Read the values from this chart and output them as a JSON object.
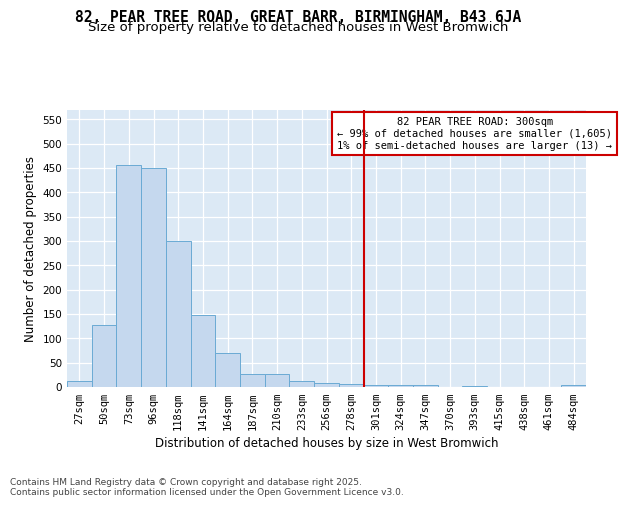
{
  "title_line1": "82, PEAR TREE ROAD, GREAT BARR, BIRMINGHAM, B43 6JA",
  "title_line2": "Size of property relative to detached houses in West Bromwich",
  "xlabel": "Distribution of detached houses by size in West Bromwich",
  "ylabel": "Number of detached properties",
  "categories": [
    "27sqm",
    "50sqm",
    "73sqm",
    "96sqm",
    "118sqm",
    "141sqm",
    "164sqm",
    "187sqm",
    "210sqm",
    "233sqm",
    "256sqm",
    "278sqm",
    "301sqm",
    "324sqm",
    "347sqm",
    "370sqm",
    "393sqm",
    "415sqm",
    "438sqm",
    "461sqm",
    "484sqm"
  ],
  "values": [
    12,
    127,
    455,
    450,
    300,
    148,
    70,
    27,
    27,
    13,
    9,
    6,
    5,
    5,
    4,
    0,
    2,
    0,
    0,
    0,
    5
  ],
  "bar_color": "#c5d8ee",
  "bar_edge_color": "#6aaad4",
  "background_color": "#dce9f5",
  "grid_color": "#ffffff",
  "vline_x_index": 12,
  "vline_color": "#cc0000",
  "annotation_text": "82 PEAR TREE ROAD: 300sqm\n← 99% of detached houses are smaller (1,605)\n1% of semi-detached houses are larger (13) →",
  "annotation_box_color": "#ffffff",
  "annotation_box_edge_color": "#cc0000",
  "ylim": [
    0,
    570
  ],
  "yticks": [
    0,
    50,
    100,
    150,
    200,
    250,
    300,
    350,
    400,
    450,
    500,
    550
  ],
  "fig_bg_color": "#ffffff",
  "footer_line1": "Contains HM Land Registry data © Crown copyright and database right 2025.",
  "footer_line2": "Contains public sector information licensed under the Open Government Licence v3.0.",
  "title_fontsize": 10.5,
  "subtitle_fontsize": 9.5,
  "axis_label_fontsize": 8.5,
  "tick_fontsize": 7.5,
  "annotation_fontsize": 7.5,
  "footer_fontsize": 6.5
}
